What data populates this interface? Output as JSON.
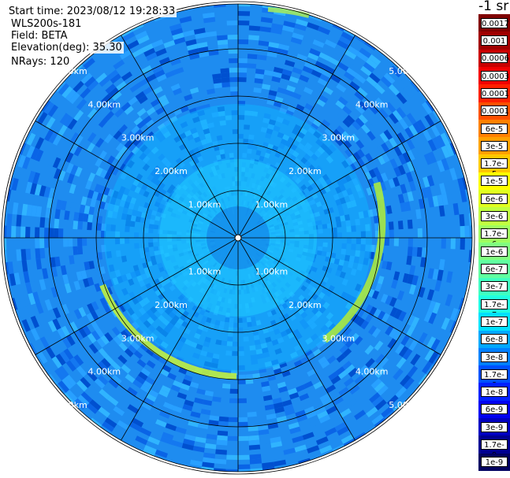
{
  "info": {
    "start_time": "Start time: 2023/08/12 19:28:33",
    "device": "WLS200s-181",
    "field": "Field: BETA",
    "elevation": "Elevation(deg): 35.30",
    "nrays": "NRays: 120"
  },
  "units_label": "-1 sr",
  "range_rings_km": [
    1,
    2,
    3,
    4,
    5
  ],
  "range_labels": {
    "r1": "1.00km",
    "r2": "2.00km",
    "r3": "3.00km",
    "r4": "4.00km",
    "r5": "5.00km"
  },
  "colorbar": {
    "ticks": [
      "0.0017",
      "0.001",
      "0.0006",
      "0.0003",
      "0.00017",
      "0.0001",
      "6e-5",
      "3e-5",
      "1.7e-5",
      "1e-5",
      "6e-6",
      "3e-6",
      "1.7e-6",
      "1e-6",
      "6e-7",
      "3e-7",
      "1.7e-7",
      "1e-7",
      "6e-8",
      "3e-8",
      "1.7e-8",
      "1e-8",
      "6e-9",
      "3e-9",
      "1.7e-9",
      "1e-9"
    ],
    "colors": [
      "#800000",
      "#a00000",
      "#c80000",
      "#f00000",
      "#ff2000",
      "#ff5000",
      "#ff8000",
      "#ffa000",
      "#ffc800",
      "#ffff00",
      "#e0ff20",
      "#c0ff40",
      "#a0ff60",
      "#80ff80",
      "#60ffa0",
      "#40ffc0",
      "#20ffe0",
      "#00e0ff",
      "#00a8ff",
      "#0080ff",
      "#0050ff",
      "#0020ff",
      "#0000f0",
      "#0000c0",
      "#000090",
      "#000060"
    ]
  },
  "colors": {
    "background": "#ffffff",
    "dominant_field": "#1e90ff",
    "inner_field": "#00c8ff",
    "ring_band": "#a0f040",
    "grid": "#000000"
  }
}
